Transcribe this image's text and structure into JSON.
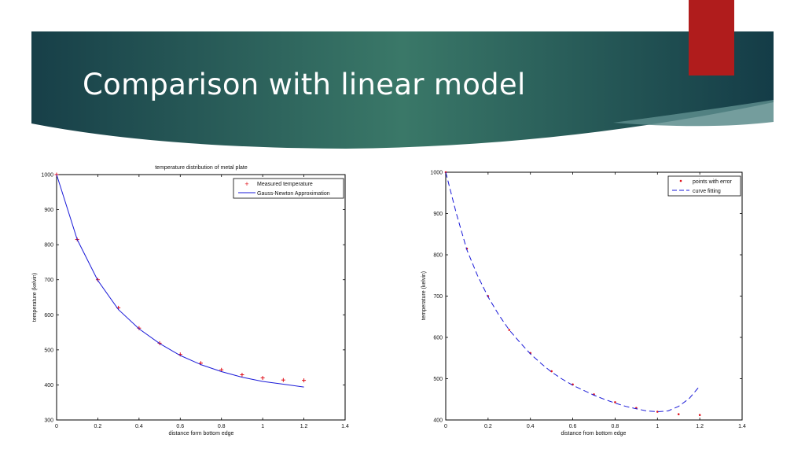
{
  "slide": {
    "title": "Comparison with linear model",
    "accent_color": "#b01c1c",
    "banner_colors": [
      "#1b4a52",
      "#3a7a6e"
    ]
  },
  "chart_data": [
    {
      "type": "line",
      "title": "temperature distribution of metal plate",
      "xlabel": "distance form bottom edge",
      "ylabel": "temperature (kelvin)",
      "xlim": [
        0,
        1.4
      ],
      "ylim": [
        300,
        1000
      ],
      "xticks": [
        "0",
        "0.2",
        "0.4",
        "0.6",
        "0.8",
        "1",
        "1.2",
        "1.4"
      ],
      "yticks": [
        "300",
        "400",
        "500",
        "600",
        "700",
        "800",
        "900",
        "1000"
      ],
      "grid": false,
      "legend_position": "top-right",
      "series": [
        {
          "name": "Measured temperature",
          "style": "markers",
          "marker": "+",
          "color": "#e0101a",
          "x": [
            0,
            0.1,
            0.2,
            0.3,
            0.4,
            0.5,
            0.6,
            0.7,
            0.8,
            0.9,
            1.0,
            1.1,
            1.2
          ],
          "y": [
            1000,
            815,
            700,
            620,
            562,
            519,
            487,
            462,
            443,
            429,
            420,
            414,
            413
          ]
        },
        {
          "name": "Gauss-Newton Approximation",
          "style": "solid",
          "color": "#1a1ad8",
          "x": [
            0,
            0.1,
            0.2,
            0.3,
            0.4,
            0.5,
            0.6,
            0.7,
            0.8,
            0.9,
            1.0,
            1.1,
            1.2
          ],
          "y": [
            1000,
            815,
            698,
            615,
            560,
            518,
            484,
            458,
            438,
            422,
            410,
            402,
            394
          ]
        }
      ]
    },
    {
      "type": "line",
      "title": "",
      "xlabel": "distance from bottom edge",
      "ylabel": "temperature (kelvin)",
      "xlim": [
        0,
        1.4
      ],
      "ylim": [
        400,
        1000
      ],
      "xticks": [
        "0",
        "0.2",
        "0.4",
        "0.6",
        "0.8",
        "1",
        "1.2",
        "1.4"
      ],
      "yticks": [
        "400",
        "500",
        "600",
        "700",
        "800",
        "900",
        "1000"
      ],
      "grid": false,
      "legend_position": "top-right",
      "series": [
        {
          "name": "points with error",
          "style": "markers",
          "marker": ".",
          "color": "#e0101a",
          "x": [
            0,
            0.1,
            0.2,
            0.3,
            0.4,
            0.5,
            0.6,
            0.7,
            0.8,
            0.9,
            1.0,
            1.1,
            1.2
          ],
          "y": [
            1000,
            815,
            700,
            618,
            562,
            518,
            486,
            462,
            443,
            429,
            420,
            414,
            412
          ]
        },
        {
          "name": "curve fitting",
          "style": "dashed",
          "color": "#1a1ad8",
          "x": [
            0,
            0.05,
            0.1,
            0.15,
            0.2,
            0.25,
            0.3,
            0.35,
            0.4,
            0.45,
            0.5,
            0.55,
            0.6,
            0.65,
            0.7,
            0.75,
            0.8,
            0.85,
            0.9,
            0.95,
            1.0,
            1.05,
            1.1,
            1.15,
            1.2
          ],
          "y": [
            1000,
            900,
            812,
            750,
            698,
            655,
            618,
            588,
            560,
            537,
            516,
            499,
            484,
            472,
            460,
            450,
            441,
            433,
            427,
            422,
            420,
            422,
            433,
            452,
            482
          ]
        }
      ]
    }
  ]
}
